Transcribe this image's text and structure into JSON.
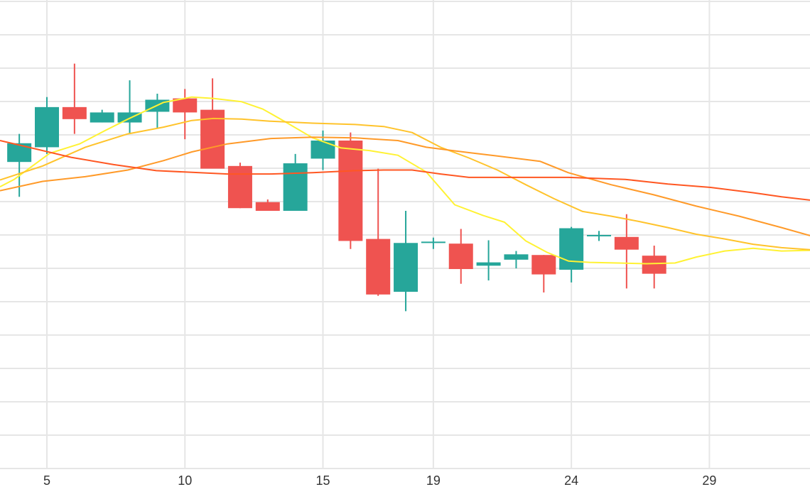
{
  "chart_data": {
    "type": "candlestick",
    "title": "",
    "xlabel": "",
    "ylabel": "",
    "x_tick_labels": [
      {
        "day": 5,
        "label": "5"
      },
      {
        "day": 10,
        "label": "10"
      },
      {
        "day": 15,
        "label": "15"
      },
      {
        "day": 19,
        "label": "19"
      },
      {
        "day": 24,
        "label": "24"
      },
      {
        "day": 29,
        "label": "29"
      }
    ],
    "y_tick_labels": [],
    "y_range": [
      0,
      70
    ],
    "grid": true,
    "colors": {
      "up": "#26a69a",
      "down": "#ef5350",
      "grid": "#e6e6e6",
      "ma_5": "#fff233",
      "ma_10": "#ffc32b",
      "ma_20": "#ff9a29",
      "ma_30": "#ff5722"
    },
    "candles": [
      {
        "day": 4,
        "open": 45.8,
        "high": 50.0,
        "low": 40.6,
        "close": 48.6
      },
      {
        "day": 5,
        "open": 48.0,
        "high": 55.5,
        "low": 47.0,
        "close": 54.0
      },
      {
        "day": 6,
        "open": 54.0,
        "high": 60.5,
        "low": 50.0,
        "close": 52.2
      },
      {
        "day": 7,
        "open": 51.7,
        "high": 53.6,
        "low": 51.7,
        "close": 53.2
      },
      {
        "day": 8,
        "open": 51.7,
        "high": 58.0,
        "low": 50.0,
        "close": 53.2
      },
      {
        "day": 9,
        "open": 53.3,
        "high": 56.0,
        "low": 50.8,
        "close": 55.1
      },
      {
        "day": 10,
        "open": 55.3,
        "high": 56.7,
        "low": 49.2,
        "close": 53.2
      },
      {
        "day": 11,
        "open": 53.6,
        "high": 58.3,
        "low": 44.9,
        "close": 44.8
      },
      {
        "day": 12,
        "open": 45.2,
        "high": 45.7,
        "low": 38.9,
        "close": 38.9
      },
      {
        "day": 13,
        "open": 39.8,
        "high": 40.2,
        "low": 38.5,
        "close": 38.5
      },
      {
        "day": 14,
        "open": 38.5,
        "high": 47.0,
        "low": 38.5,
        "close": 45.6
      },
      {
        "day": 15,
        "open": 46.3,
        "high": 50.5,
        "low": 44.6,
        "close": 49.0
      },
      {
        "day": 16,
        "open": 49.0,
        "high": 50.2,
        "low": 32.8,
        "close": 34.0
      },
      {
        "day": 17,
        "open": 34.3,
        "high": 44.8,
        "low": 25.8,
        "close": 26.0
      },
      {
        "day": 18,
        "open": 26.4,
        "high": 38.5,
        "low": 23.5,
        "close": 33.7
      },
      {
        "day": 19,
        "open": 33.9,
        "high": 34.5,
        "low": 32.8,
        "close": 33.9
      },
      {
        "day": 20,
        "open": 33.6,
        "high": 35.8,
        "low": 27.6,
        "close": 29.8
      },
      {
        "day": 21,
        "open": 30.3,
        "high": 34.1,
        "low": 28.1,
        "close": 30.8
      },
      {
        "day": 22,
        "open": 31.2,
        "high": 32.5,
        "low": 29.9,
        "close": 32.0
      },
      {
        "day": 23,
        "open": 31.9,
        "high": 31.9,
        "low": 26.3,
        "close": 29.0
      },
      {
        "day": 24,
        "open": 29.7,
        "high": 36.1,
        "low": 27.8,
        "close": 35.9
      },
      {
        "day": 25,
        "open": 34.9,
        "high": 35.5,
        "low": 34.0,
        "close": 34.9
      },
      {
        "day": 26,
        "open": 34.6,
        "high": 38.0,
        "low": 26.9,
        "close": 32.7
      },
      {
        "day": 27,
        "open": 31.8,
        "high": 33.3,
        "low": 26.9,
        "close": 29.1
      }
    ],
    "moving_averages": [
      {
        "key": "ma_5",
        "values": [
          [
            0,
            42.1
          ],
          [
            20,
            43.2
          ],
          [
            70,
            47.1
          ],
          [
            112,
            48.5
          ],
          [
            148,
            50.5
          ],
          [
            180,
            52.2
          ],
          [
            230,
            54.7
          ],
          [
            270,
            55.5
          ],
          [
            300,
            55.3
          ],
          [
            340,
            54.8
          ],
          [
            370,
            53.7
          ],
          [
            400,
            51.9
          ],
          [
            440,
            49.4
          ],
          [
            480,
            47.9
          ],
          [
            520,
            47.5
          ],
          [
            560,
            46.8
          ],
          [
            600,
            44.3
          ],
          [
            640,
            39.4
          ],
          [
            680,
            37.8
          ],
          [
            710,
            36.8
          ],
          [
            740,
            34.0
          ],
          [
            770,
            32.3
          ],
          [
            800,
            31.0
          ],
          [
            830,
            30.8
          ],
          [
            870,
            30.7
          ],
          [
            910,
            30.6
          ],
          [
            950,
            30.7
          ],
          [
            980,
            31.6
          ],
          [
            1020,
            32.5
          ],
          [
            1060,
            32.9
          ],
          [
            1100,
            32.5
          ],
          [
            1140,
            32.6
          ]
        ]
      },
      {
        "key": "ma_10",
        "values": [
          [
            0,
            43.1
          ],
          [
            60,
            45.2
          ],
          [
            120,
            48.0
          ],
          [
            180,
            50.0
          ],
          [
            230,
            51.0
          ],
          [
            270,
            52.0
          ],
          [
            300,
            52.3
          ],
          [
            340,
            52.2
          ],
          [
            380,
            51.9
          ],
          [
            440,
            51.6
          ],
          [
            500,
            51.4
          ],
          [
            540,
            51.1
          ],
          [
            580,
            50.2
          ],
          [
            620,
            48.0
          ],
          [
            660,
            46.4
          ],
          [
            700,
            44.6
          ],
          [
            740,
            42.4
          ],
          [
            780,
            40.3
          ],
          [
            820,
            38.4
          ],
          [
            860,
            37.7
          ],
          [
            900,
            36.9
          ],
          [
            940,
            36.0
          ],
          [
            980,
            35.0
          ],
          [
            1020,
            34.3
          ],
          [
            1060,
            33.5
          ],
          [
            1100,
            33.0
          ],
          [
            1140,
            32.7
          ]
        ]
      },
      {
        "key": "ma_20",
        "values": [
          [
            0,
            41.5
          ],
          [
            60,
            42.9
          ],
          [
            120,
            43.6
          ],
          [
            180,
            44.6
          ],
          [
            230,
            46.0
          ],
          [
            270,
            47.3
          ],
          [
            320,
            48.5
          ],
          [
            380,
            49.3
          ],
          [
            440,
            49.5
          ],
          [
            500,
            49.4
          ],
          [
            560,
            49.0
          ],
          [
            600,
            48.0
          ],
          [
            660,
            47.2
          ],
          [
            700,
            46.7
          ],
          [
            760,
            45.9
          ],
          [
            800,
            44.2
          ],
          [
            860,
            42.4
          ],
          [
            920,
            40.9
          ],
          [
            980,
            39.2
          ],
          [
            1040,
            37.7
          ],
          [
            1100,
            36.0
          ],
          [
            1140,
            34.8
          ]
        ]
      },
      {
        "key": "ma_30",
        "values": [
          [
            0,
            49.0
          ],
          [
            40,
            48.0
          ],
          [
            100,
            46.5
          ],
          [
            160,
            45.4
          ],
          [
            220,
            44.5
          ],
          [
            260,
            44.3
          ],
          [
            320,
            44.0
          ],
          [
            380,
            44.0
          ],
          [
            440,
            44.2
          ],
          [
            500,
            44.5
          ],
          [
            540,
            44.6
          ],
          [
            580,
            44.6
          ],
          [
            620,
            44.0
          ],
          [
            660,
            43.5
          ],
          [
            700,
            43.5
          ],
          [
            760,
            43.5
          ],
          [
            800,
            43.5
          ],
          [
            880,
            43.2
          ],
          [
            940,
            42.5
          ],
          [
            1000,
            42.0
          ],
          [
            1060,
            41.2
          ],
          [
            1100,
            40.6
          ],
          [
            1140,
            40.1
          ]
        ]
      }
    ]
  }
}
